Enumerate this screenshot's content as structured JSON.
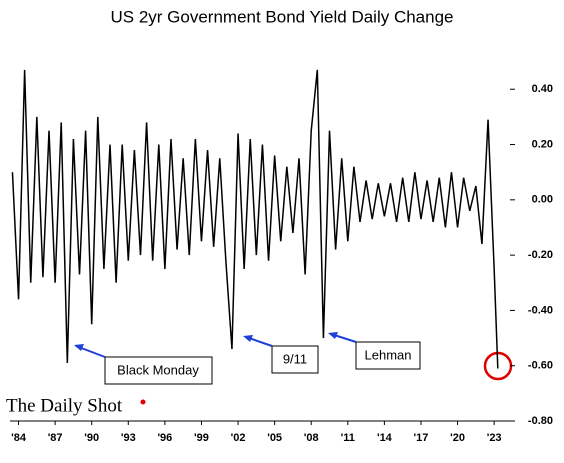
{
  "chart_data": {
    "type": "line",
    "title": "US 2yr Government Bond Yield Daily Change",
    "x": [
      1983.5,
      1984.0,
      1984.5,
      1985.0,
      1985.5,
      1986.0,
      1986.5,
      1987.0,
      1987.5,
      1988.0,
      1988.5,
      1989.0,
      1989.5,
      1990.0,
      1990.5,
      1991.0,
      1991.5,
      1992.0,
      1992.5,
      1993.0,
      1993.5,
      1994.0,
      1994.5,
      1995.0,
      1995.5,
      1996.0,
      1996.5,
      1997.0,
      1997.5,
      1998.0,
      1998.5,
      1999.0,
      1999.5,
      2000.0,
      2000.5,
      2001.0,
      2001.5,
      2002.0,
      2002.5,
      2003.0,
      2003.5,
      2004.0,
      2004.5,
      2005.0,
      2005.5,
      2006.0,
      2006.5,
      2007.0,
      2007.5,
      2008.0,
      2008.5,
      2009.0,
      2009.5,
      2010.0,
      2010.5,
      2011.0,
      2011.5,
      2012.0,
      2012.5,
      2013.0,
      2013.5,
      2014.0,
      2014.5,
      2015.0,
      2015.5,
      2016.0,
      2016.5,
      2017.0,
      2017.5,
      2018.0,
      2018.5,
      2019.0,
      2019.5,
      2020.0,
      2020.5,
      2021.0,
      2021.5,
      2022.0,
      2022.5,
      2023.0,
      2023.3
    ],
    "series": [
      {
        "color": "#000000",
        "values": [
          0.1,
          -0.36,
          0.47,
          -0.3,
          0.3,
          -0.28,
          0.25,
          -0.3,
          0.28,
          -0.59,
          0.22,
          -0.27,
          0.25,
          -0.45,
          0.3,
          -0.25,
          0.2,
          -0.3,
          0.2,
          -0.22,
          0.18,
          -0.2,
          0.28,
          -0.22,
          0.2,
          -0.25,
          0.22,
          -0.18,
          0.15,
          -0.2,
          0.22,
          -0.15,
          0.18,
          -0.17,
          0.15,
          -0.22,
          -0.54,
          0.24,
          -0.25,
          0.22,
          -0.2,
          0.2,
          -0.22,
          0.16,
          -0.15,
          0.12,
          -0.12,
          0.15,
          -0.27,
          0.25,
          0.47,
          -0.5,
          0.25,
          -0.18,
          0.15,
          -0.15,
          0.12,
          -0.08,
          0.07,
          -0.07,
          0.06,
          -0.06,
          0.06,
          -0.08,
          0.08,
          -0.08,
          0.1,
          -0.07,
          0.07,
          -0.08,
          0.08,
          -0.1,
          0.1,
          -0.1,
          0.08,
          -0.04,
          0.05,
          -0.16,
          0.29,
          -0.25,
          -0.61
        ]
      }
    ],
    "xlim": [
      1983.3,
      2024.3
    ],
    "xticks": [
      {
        "value": 1984,
        "label": "'84"
      },
      {
        "value": 1987,
        "label": "'87"
      },
      {
        "value": 1990,
        "label": "'90"
      },
      {
        "value": 1993,
        "label": "'93"
      },
      {
        "value": 1996,
        "label": "'96"
      },
      {
        "value": 1999,
        "label": "'99"
      },
      {
        "value": 2002,
        "label": "'02"
      },
      {
        "value": 2005,
        "label": "'05"
      },
      {
        "value": 2008,
        "label": "'08"
      },
      {
        "value": 2011,
        "label": "'11"
      },
      {
        "value": 2014,
        "label": "'14"
      },
      {
        "value": 2017,
        "label": "'17"
      },
      {
        "value": 2020,
        "label": "'20"
      },
      {
        "value": 2023,
        "label": "'23"
      }
    ],
    "ylim": [
      -0.8,
      0.56
    ],
    "yticks": [
      {
        "value": -0.8,
        "label": "-0.80"
      },
      {
        "value": -0.6,
        "label": "-0.60"
      },
      {
        "value": -0.4,
        "label": "-0.40"
      },
      {
        "value": -0.2,
        "label": "-0.20"
      },
      {
        "value": 0,
        "label": "0.00"
      },
      {
        "value": 0.2,
        "label": "0.20"
      },
      {
        "value": 0.4,
        "label": "0.40"
      }
    ],
    "annotations": [
      "Black Monday",
      "9/11",
      "Lehman"
    ],
    "source": "The Daily Shot"
  }
}
